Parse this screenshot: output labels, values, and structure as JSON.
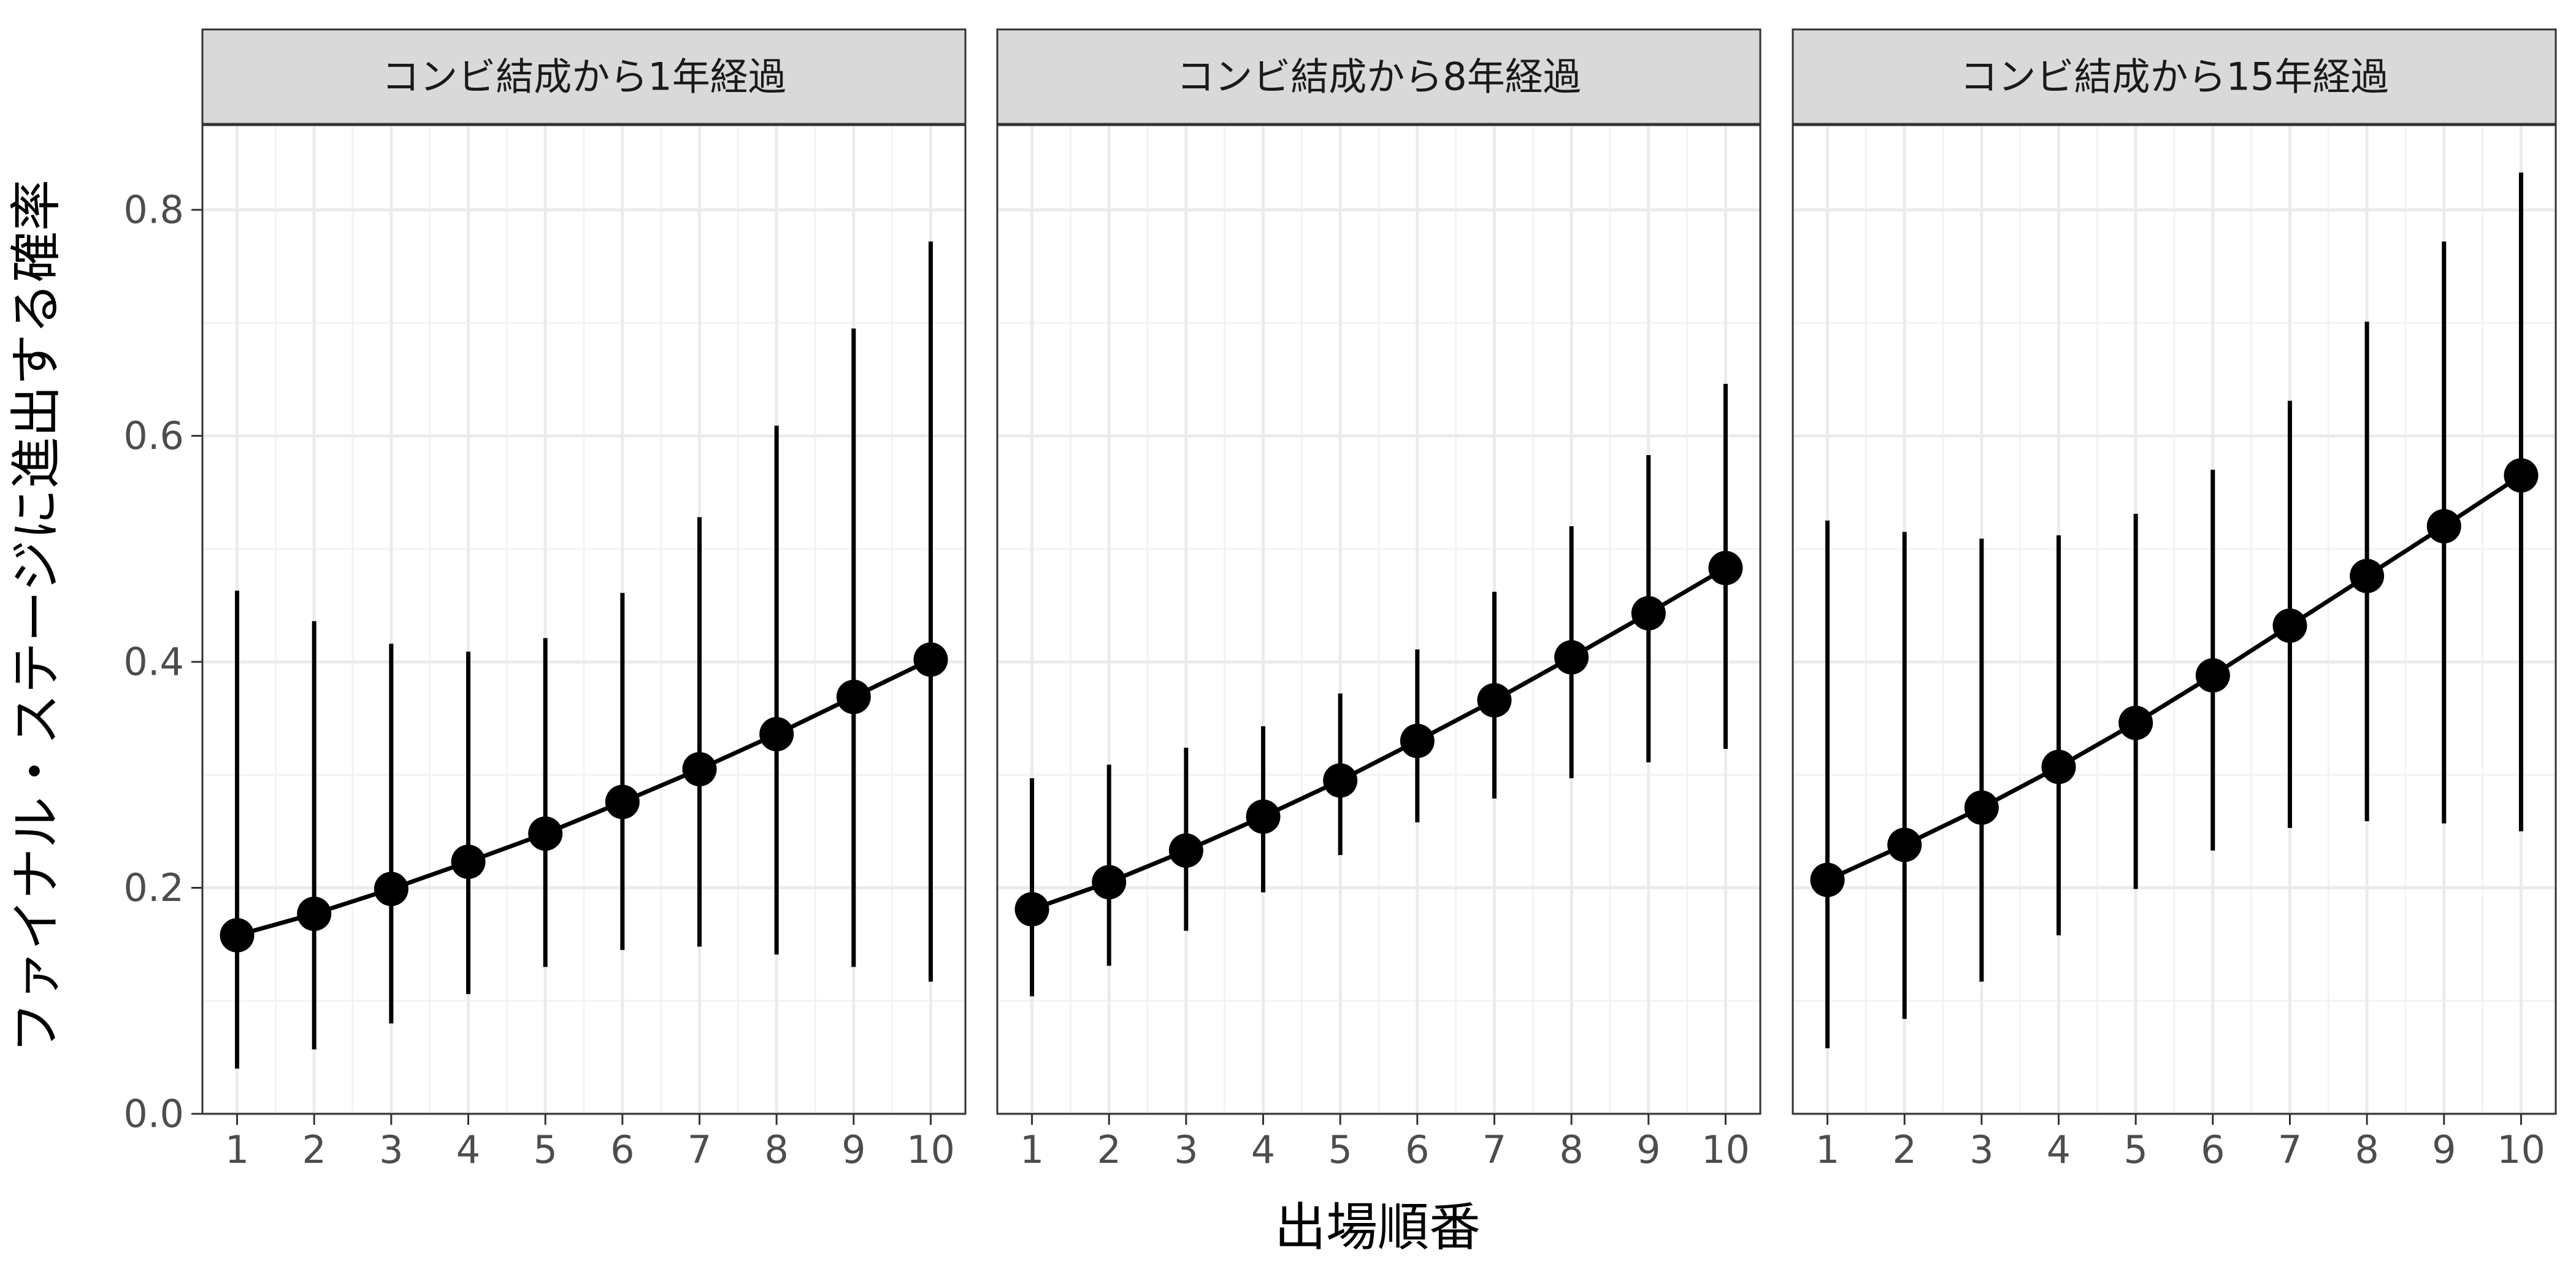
{
  "chart_data": [
    {
      "type": "line",
      "title": "コンビ結成から1年経過",
      "xlabel": "出場順番",
      "ylabel": "ファイナル・ステージに進出する確率",
      "x": [
        1,
        2,
        3,
        4,
        5,
        6,
        7,
        8,
        9,
        10
      ],
      "y": [
        0.158,
        0.177,
        0.199,
        0.223,
        0.248,
        0.276,
        0.305,
        0.336,
        0.369,
        0.402
      ],
      "y_lower": [
        0.04,
        0.057,
        0.08,
        0.106,
        0.13,
        0.145,
        0.148,
        0.141,
        0.13,
        0.117
      ],
      "y_upper": [
        0.463,
        0.436,
        0.416,
        0.409,
        0.421,
        0.461,
        0.528,
        0.609,
        0.695,
        0.772
      ],
      "xlim": [
        0.55,
        10.45
      ],
      "ylim": [
        0,
        0.875
      ],
      "grid": true
    },
    {
      "type": "line",
      "title": "コンビ結成から8年経過",
      "xlabel": "出場順番",
      "ylabel": "ファイナル・ステージに進出する確率",
      "x": [
        1,
        2,
        3,
        4,
        5,
        6,
        7,
        8,
        9,
        10
      ],
      "y": [
        0.181,
        0.205,
        0.233,
        0.263,
        0.295,
        0.33,
        0.366,
        0.404,
        0.443,
        0.483
      ],
      "y_lower": [
        0.104,
        0.131,
        0.162,
        0.196,
        0.229,
        0.258,
        0.279,
        0.297,
        0.311,
        0.323
      ],
      "y_upper": [
        0.297,
        0.309,
        0.324,
        0.343,
        0.372,
        0.411,
        0.462,
        0.52,
        0.583,
        0.646
      ],
      "xlim": [
        0.55,
        10.45
      ],
      "ylim": [
        0,
        0.875
      ],
      "grid": true
    },
    {
      "type": "line",
      "title": "コンビ結成から15年経過",
      "xlabel": "出場順番",
      "ylabel": "ファイナル・ステージに進出する確率",
      "x": [
        1,
        2,
        3,
        4,
        5,
        6,
        7,
        8,
        9,
        10
      ],
      "y": [
        0.207,
        0.238,
        0.271,
        0.307,
        0.346,
        0.388,
        0.432,
        0.476,
        0.52,
        0.565
      ],
      "y_lower": [
        0.058,
        0.084,
        0.117,
        0.158,
        0.199,
        0.233,
        0.253,
        0.259,
        0.257,
        0.25
      ],
      "y_upper": [
        0.525,
        0.515,
        0.509,
        0.512,
        0.531,
        0.57,
        0.631,
        0.701,
        0.772,
        0.833
      ],
      "xlim": [
        0.55,
        10.45
      ],
      "ylim": [
        0,
        0.875
      ],
      "grid": true
    }
  ],
  "axes": {
    "xlabel": "出場順番",
    "ylabel": "ファイナル・ステージに進出する確率",
    "y_ticks": [
      "0.0",
      "0.2",
      "0.4",
      "0.6",
      "0.8"
    ],
    "y_tick_values": [
      0,
      0.2,
      0.4,
      0.6,
      0.8
    ],
    "x_ticks": [
      "1",
      "2",
      "3",
      "4",
      "5",
      "6",
      "7",
      "8",
      "9",
      "10"
    ],
    "x_tick_values": [
      1,
      2,
      3,
      4,
      5,
      6,
      7,
      8,
      9,
      10
    ]
  },
  "colors": {
    "strip_fill": "#d9d9d9",
    "panel_border": "#333333",
    "grid": "#ebebeb",
    "series": "#000000"
  }
}
